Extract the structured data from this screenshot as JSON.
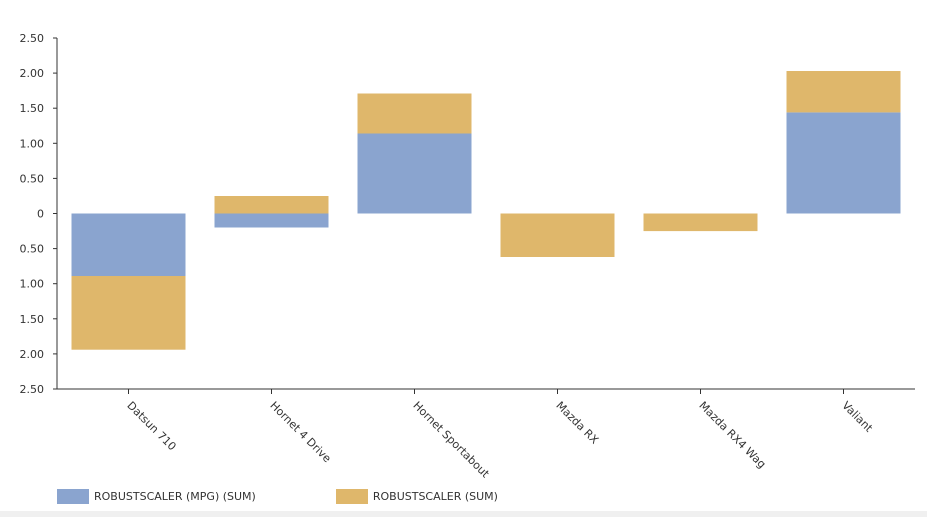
{
  "chart_data": {
    "type": "bar",
    "stacked": true,
    "categories": [
      "Datsun 710",
      "Hornet 4 Drive",
      "Hornet Sportabout",
      "Mazda RX",
      "Mazda RX4 Wag",
      "Valiant"
    ],
    "series": [
      {
        "name": "ROBUSTSCALER (MPG) (SUM)",
        "values": [
          -0.89,
          -0.2,
          1.14,
          0.0,
          0.0,
          1.44
        ],
        "color": "#8aa4cf"
      },
      {
        "name": "ROBUSTSCALER (SUM)",
        "values": [
          -1.05,
          0.25,
          0.57,
          -0.62,
          -0.25,
          0.59
        ],
        "color": "#dfb76b"
      }
    ],
    "ylim": [
      -2.5,
      2.5
    ],
    "yticks": [
      2.5,
      2.0,
      1.5,
      1.0,
      0.5,
      0,
      -0.5,
      -1.0,
      -1.5,
      -2.0,
      -2.5
    ],
    "ytick_labels": [
      "2.50",
      "2.00",
      "1.50",
      "1.00",
      "0.50",
      "0",
      "0.50",
      "1.00",
      "1.50",
      "2.00",
      "2.50"
    ],
    "title": "",
    "xlabel": "",
    "ylabel": "",
    "grid": false,
    "legend_position": "bottom-left"
  }
}
